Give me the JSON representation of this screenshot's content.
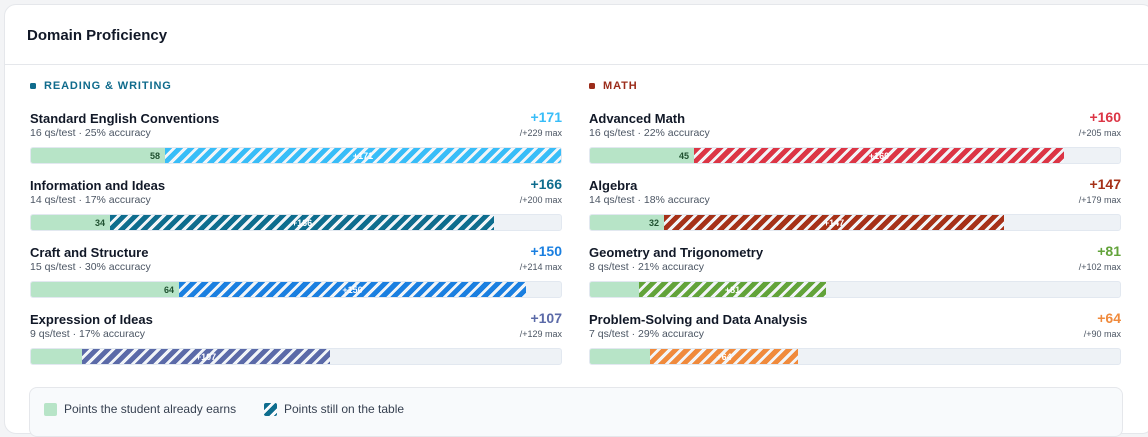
{
  "card": {
    "title": "Domain Proficiency"
  },
  "sections": [
    {
      "label": "READING & WRITING",
      "color": "#0f6b8c",
      "rows": [
        {
          "name": "Standard English Conventions",
          "meta": "16 qs/test · 25% accuracy",
          "gain": "+171",
          "max": "/+229 max",
          "earned": 58,
          "earned_label": "58",
          "table": 171,
          "table_label": "+171",
          "color": "#38bdf8"
        },
        {
          "name": "Information and Ideas",
          "meta": "14 qs/test · 17% accuracy",
          "gain": "+166",
          "max": "/+200 max",
          "earned": 34,
          "earned_label": "34",
          "table": 166,
          "table_label": "+166",
          "color": "#0e6d8e"
        },
        {
          "name": "Craft and Structure",
          "meta": "15 qs/test · 30% accuracy",
          "gain": "+150",
          "max": "/+214 max",
          "earned": 64,
          "earned_label": "64",
          "table": 150,
          "table_label": "+150",
          "color": "#1a7fe0"
        },
        {
          "name": "Expression of Ideas",
          "meta": "9 qs/test · 17% accuracy",
          "gain": "+107",
          "max": "/+129 max",
          "earned": 22,
          "earned_label": "",
          "table": 107,
          "table_label": "+107",
          "color": "#5b6aa8"
        }
      ]
    },
    {
      "label": "MATH",
      "color": "#9b2c1a",
      "rows": [
        {
          "name": "Advanced Math",
          "meta": "16 qs/test · 22% accuracy",
          "gain": "+160",
          "max": "/+205 max",
          "earned": 45,
          "earned_label": "45",
          "table": 160,
          "table_label": "+160",
          "color": "#dc3545"
        },
        {
          "name": "Algebra",
          "meta": "14 qs/test · 18% accuracy",
          "gain": "+147",
          "max": "/+179 max",
          "earned": 32,
          "earned_label": "32",
          "table": 147,
          "table_label": "+147",
          "color": "#a63118"
        },
        {
          "name": "Geometry and Trigonometry",
          "meta": "8 qs/test · 21% accuracy",
          "gain": "+81",
          "max": "/+102 max",
          "earned": 21,
          "earned_label": "",
          "table": 81,
          "table_label": "+81",
          "color": "#62a33a"
        },
        {
          "name": "Problem-Solving and Data Analysis",
          "meta": "7 qs/test · 29% accuracy",
          "gain": "+64",
          "max": "/+90 max",
          "earned": 26,
          "earned_label": "",
          "table": 64,
          "table_label": "+64",
          "color": "#f08a3c"
        }
      ]
    }
  ],
  "scale_max": 229,
  "legend": {
    "earned_label": "Points the student already earns",
    "earned_color": "#b7e4c7",
    "table_label": "Points still on the table",
    "table_color": "#0e6d8e"
  }
}
